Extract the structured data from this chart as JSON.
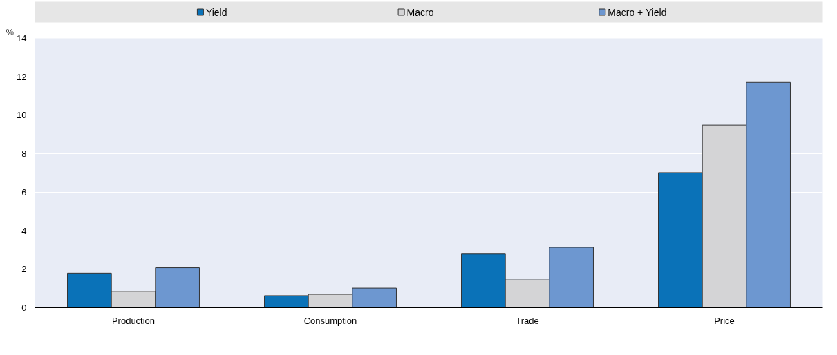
{
  "chart_data": {
    "type": "bar",
    "ylabel": "%",
    "categories": [
      "Production",
      "Consumption",
      "Trade",
      "Price"
    ],
    "series": [
      {
        "name": "Yield",
        "color": "#0a72b8",
        "values": [
          1.8,
          0.63,
          2.79,
          7.02
        ]
      },
      {
        "name": "Macro",
        "color": "#d4d4d6",
        "values": [
          0.85,
          0.7,
          1.45,
          9.49
        ]
      },
      {
        "name": "Macro + Yield",
        "color": "#6d97d0",
        "values": [
          2.08,
          1.02,
          3.14,
          11.71
        ]
      }
    ],
    "ylim": [
      0,
      14
    ],
    "yticks": [
      0,
      2,
      4,
      6,
      8,
      10,
      12,
      14
    ],
    "grid": true,
    "legend": "top"
  }
}
